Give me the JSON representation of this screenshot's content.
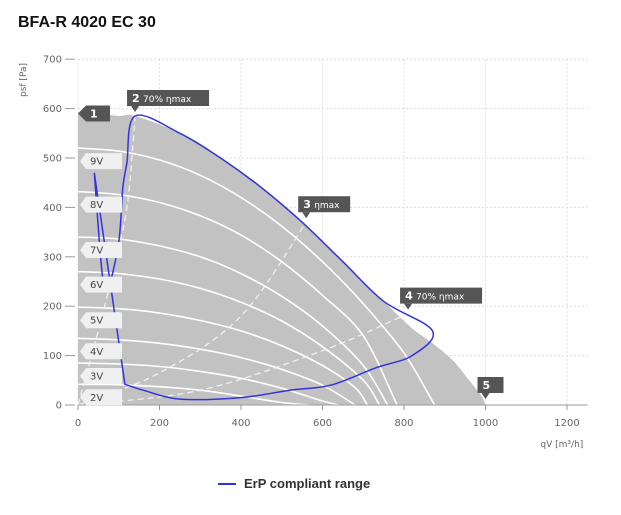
{
  "title": "BFA-R 4020 EC 30",
  "chart_data": {
    "type": "line",
    "xlabel": "qV [m³/h]",
    "ylabel": "psf [Pa]",
    "xlim": [
      0,
      1250
    ],
    "ylim": [
      0,
      700
    ],
    "xticks": [
      0,
      200,
      400,
      600,
      800,
      1000,
      1200
    ],
    "yticks": [
      0,
      100,
      200,
      300,
      400,
      500,
      600,
      700
    ],
    "grid": true,
    "legend_position": "bottom",
    "operating_area_color": "#c2c2c2",
    "curve_color": "#ffffff",
    "compliant_color": "#3333dd",
    "envelope": [
      [
        0,
        590
      ],
      [
        50,
        590
      ],
      [
        100,
        585
      ],
      [
        140,
        585
      ],
      [
        250,
        550
      ],
      [
        350,
        500
      ],
      [
        450,
        440
      ],
      [
        550,
        370
      ],
      [
        650,
        290
      ],
      [
        750,
        210
      ],
      [
        820,
        155
      ],
      [
        870,
        125
      ],
      [
        920,
        90
      ],
      [
        960,
        50
      ],
      [
        990,
        18
      ],
      [
        1000,
        0
      ],
      [
        0,
        0
      ]
    ],
    "voltage_curves": [
      {
        "name": "9V",
        "points": [
          [
            0,
            520
          ],
          [
            100,
            514
          ],
          [
            200,
            496
          ],
          [
            300,
            465
          ],
          [
            400,
            420
          ],
          [
            500,
            362
          ],
          [
            600,
            290
          ],
          [
            700,
            205
          ],
          [
            800,
            105
          ],
          [
            875,
            0
          ]
        ]
      },
      {
        "name": "8V",
        "points": [
          [
            0,
            432
          ],
          [
            100,
            426
          ],
          [
            200,
            410
          ],
          [
            300,
            383
          ],
          [
            400,
            344
          ],
          [
            500,
            290
          ],
          [
            600,
            222
          ],
          [
            700,
            140
          ],
          [
            783,
            0
          ]
        ]
      },
      {
        "name": "7V",
        "points": [
          [
            0,
            340
          ],
          [
            100,
            336
          ],
          [
            200,
            322
          ],
          [
            300,
            300
          ],
          [
            400,
            266
          ],
          [
            500,
            220
          ],
          [
            600,
            160
          ],
          [
            700,
            80
          ],
          [
            760,
            0
          ]
        ]
      },
      {
        "name": "6V",
        "points": [
          [
            0,
            270
          ],
          [
            100,
            266
          ],
          [
            200,
            255
          ],
          [
            300,
            236
          ],
          [
            400,
            208
          ],
          [
            500,
            170
          ],
          [
            600,
            118
          ],
          [
            700,
            50
          ],
          [
            740,
            0
          ]
        ]
      },
      {
        "name": "5V",
        "points": [
          [
            0,
            198
          ],
          [
            100,
            195
          ],
          [
            200,
            186
          ],
          [
            300,
            171
          ],
          [
            400,
            150
          ],
          [
            500,
            120
          ],
          [
            600,
            80
          ],
          [
            680,
            35
          ],
          [
            710,
            0
          ]
        ]
      },
      {
        "name": "4V",
        "points": [
          [
            0,
            135
          ],
          [
            100,
            132
          ],
          [
            200,
            125
          ],
          [
            300,
            113
          ],
          [
            400,
            96
          ],
          [
            500,
            72
          ],
          [
            600,
            40
          ],
          [
            680,
            0
          ]
        ]
      },
      {
        "name": "3V",
        "points": [
          [
            0,
            85
          ],
          [
            100,
            83
          ],
          [
            200,
            78
          ],
          [
            300,
            68
          ],
          [
            400,
            54
          ],
          [
            500,
            34
          ],
          [
            600,
            8
          ],
          [
            640,
            0
          ]
        ]
      },
      {
        "name": "2V",
        "points": [
          [
            0,
            42
          ],
          [
            100,
            41
          ],
          [
            200,
            37
          ],
          [
            300,
            30
          ],
          [
            400,
            18
          ],
          [
            500,
            5
          ],
          [
            570,
            0
          ]
        ]
      }
    ],
    "system_lines": [
      {
        "name": "2",
        "points": [
          [
            0,
            0
          ],
          [
            40,
            120
          ],
          [
            80,
            250
          ],
          [
            120,
            400
          ],
          [
            140,
            585
          ]
        ]
      },
      {
        "name": "3",
        "points": [
          [
            0,
            0
          ],
          [
            200,
            65
          ],
          [
            400,
            180
          ],
          [
            560,
            370
          ]
        ]
      },
      {
        "name": "4",
        "points": [
          [
            0,
            0
          ],
          [
            300,
            30
          ],
          [
            600,
            110
          ],
          [
            810,
            185
          ]
        ]
      }
    ],
    "erp_compliant_boundary": [
      [
        40,
        470
      ],
      [
        60,
        260
      ],
      [
        75,
        240
      ],
      [
        100,
        330
      ],
      [
        110,
        440
      ],
      [
        120,
        490
      ],
      [
        140,
        585
      ],
      [
        250,
        550
      ],
      [
        350,
        500
      ],
      [
        450,
        440
      ],
      [
        550,
        370
      ],
      [
        650,
        290
      ],
      [
        750,
        210
      ],
      [
        870,
        150
      ],
      [
        820,
        100
      ],
      [
        730,
        75
      ],
      [
        620,
        40
      ],
      [
        520,
        30
      ],
      [
        400,
        15
      ],
      [
        250,
        12
      ],
      [
        160,
        30
      ],
      [
        115,
        42
      ]
    ],
    "point_labels": [
      {
        "id": "1",
        "text": "1",
        "sub": "",
        "x": 0,
        "y": 590
      },
      {
        "id": "2",
        "text": "2",
        "sub": "70% ηmax",
        "x": 140,
        "y": 585
      },
      {
        "id": "3",
        "text": "3",
        "sub": "ηmax",
        "x": 560,
        "y": 370
      },
      {
        "id": "4",
        "text": "4",
        "sub": "70% ηmax",
        "x": 810,
        "y": 185
      },
      {
        "id": "5",
        "text": "5",
        "sub": "",
        "x": 1000,
        "y": 0
      }
    ],
    "legend": [
      "ErP compliant range"
    ]
  }
}
